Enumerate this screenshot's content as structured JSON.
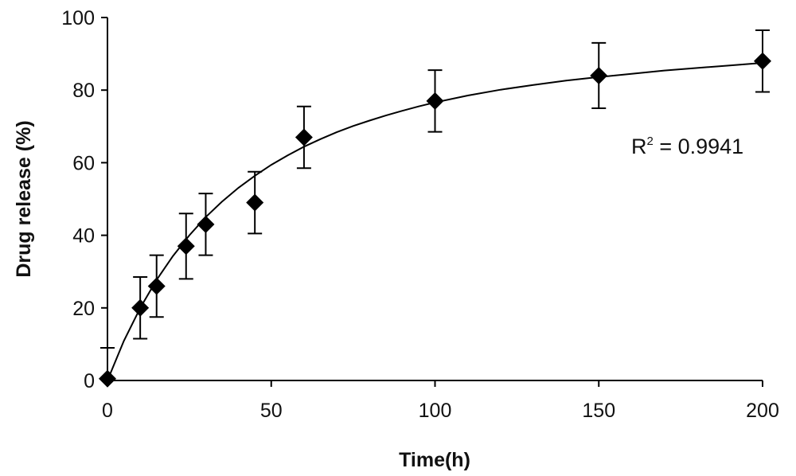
{
  "chart_data": {
    "type": "scatter",
    "xlabel": "Time(h)",
    "ylabel": "Drug release (%)",
    "xlim": [
      0,
      200
    ],
    "ylim": [
      0,
      100
    ],
    "x_ticks": [
      "0",
      "50",
      "100",
      "150",
      "200"
    ],
    "y_ticks": [
      "0",
      "20",
      "40",
      "60",
      "80",
      "100"
    ],
    "grid": false,
    "series": [
      {
        "x": [
          0,
          10,
          15,
          24,
          30,
          45,
          60,
          100,
          150,
          200
        ],
        "y": [
          0.5,
          20,
          26,
          37,
          43,
          49,
          67,
          77,
          84,
          88
        ],
        "error": [
          8.5,
          8.5,
          8.5,
          9,
          8.5,
          8.5,
          8.5,
          8.5,
          9,
          8.5
        ],
        "marker": "diamond",
        "color": "#000000"
      }
    ],
    "fit_curve": {
      "x": [
        0,
        5,
        10,
        15,
        20,
        25,
        30,
        35,
        40,
        45,
        50,
        55,
        60,
        65,
        70,
        75,
        80,
        85,
        90,
        95,
        100,
        110,
        120,
        130,
        140,
        150,
        160,
        170,
        180,
        190,
        200
      ],
      "y": [
        0,
        10.9,
        20.0,
        27.7,
        34.3,
        40.0,
        45.0,
        49.3,
        53.1,
        56.4,
        59.4,
        62.0,
        64.4,
        66.5,
        68.4,
        70.1,
        71.6,
        73.0,
        74.3,
        75.5,
        76.6,
        78.5,
        80.1,
        81.4,
        82.6,
        83.6,
        84.5,
        85.4,
        86.1,
        86.8,
        87.5
      ],
      "color": "#000000"
    },
    "annotation": {
      "prefix": "R",
      "superscript": "2",
      "suffix": " = 0.9941"
    }
  }
}
